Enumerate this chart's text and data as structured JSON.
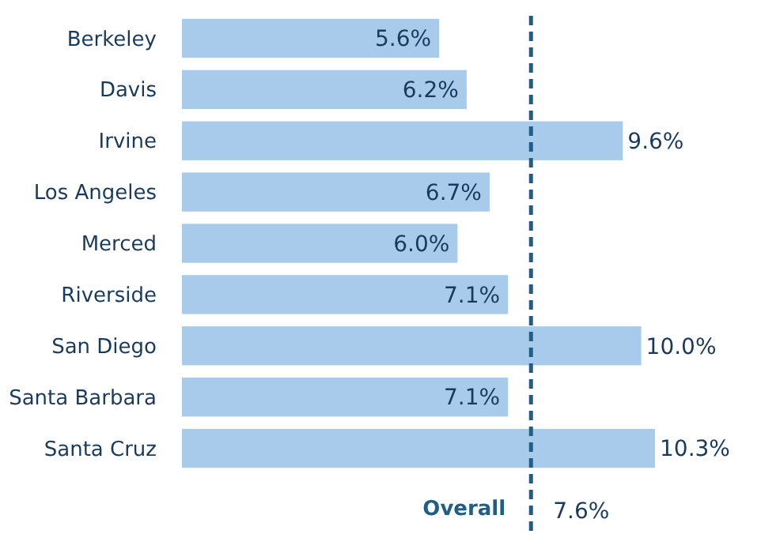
{
  "chart_data": {
    "type": "bar",
    "orientation": "horizontal",
    "categories": [
      "Berkeley",
      "Davis",
      "Irvine",
      "Los Angeles",
      "Merced",
      "Riverside",
      "San Diego",
      "Santa Barbara",
      "Santa Cruz"
    ],
    "values": [
      5.6,
      6.2,
      9.6,
      6.7,
      6.0,
      7.1,
      10.0,
      7.1,
      10.3
    ],
    "value_labels": [
      "5.6%",
      "6.2%",
      "9.6%",
      "6.7%",
      "6.0%",
      "7.1%",
      "10.0%",
      "7.1%",
      "10.3%"
    ],
    "color": "#a8cbec",
    "ref_lines": [
      {
        "axis": "x",
        "value": 7.6,
        "label": "Overall",
        "color": "#1f5f86",
        "line_style": "dashed"
      }
    ],
    "annotations": [
      "7.6%"
    ]
  }
}
